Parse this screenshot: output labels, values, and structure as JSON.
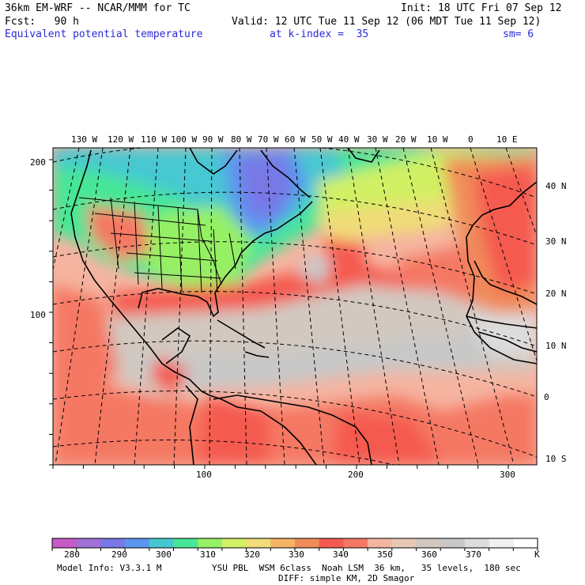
{
  "header": {
    "line1_left": "36km EM-WRF -- NCAR/MMM for TC",
    "line1_right": "Init: 18 UTC Fri 07 Sep 12",
    "line2_left": "Fcst:   90 h",
    "line2_right": "Valid: 12 UTC Tue 11 Sep 12 (06 MDT Tue 11 Sep 12)",
    "field": "Equivalent potential temperature",
    "level": "at k-index =  35",
    "smoothing": "sm= 6"
  },
  "top_longitudes": [
    "130 W",
    "120 W",
    "110 W",
    "100 W",
    "90 W",
    "80 W",
    "70 W",
    "60 W",
    "50 W",
    "40 W",
    "30 W",
    "20 W",
    "10 W",
    "0",
    "10 E"
  ],
  "right_latitudes": [
    "40 N",
    "30 N",
    "20 N",
    "10 N",
    "0",
    "10 S"
  ],
  "left_grid_ticks": [
    "200",
    "100"
  ],
  "bottom_grid_ticks": [
    "100",
    "200",
    "300"
  ],
  "colorbar": {
    "labels": [
      "280",
      "290",
      "300",
      "310",
      "320",
      "330",
      "340",
      "350",
      "360",
      "370"
    ],
    "unit": "K",
    "colors": [
      "#c85ac8",
      "#a070d8",
      "#7878e6",
      "#5a96f0",
      "#46c8d2",
      "#46e696",
      "#96f064",
      "#d2f064",
      "#f0dc78",
      "#f5b464",
      "#f08c5a",
      "#f55a50",
      "#f57864",
      "#f5b4a0",
      "#e6c8b4",
      "#d2c8c0",
      "#c8c8c8",
      "#dcdcdc",
      "#f0f0f0",
      "#ffffff"
    ]
  },
  "footer": {
    "model_info": "Model Info: V3.3.1 M",
    "physics1": "YSU PBL  WSM 6class  Noah LSM  36 km,   35 levels,  180 sec",
    "physics2": "DIFF: simple KM, 2D Smagor"
  },
  "colors": {
    "title_blue": "#2a2ad8"
  }
}
